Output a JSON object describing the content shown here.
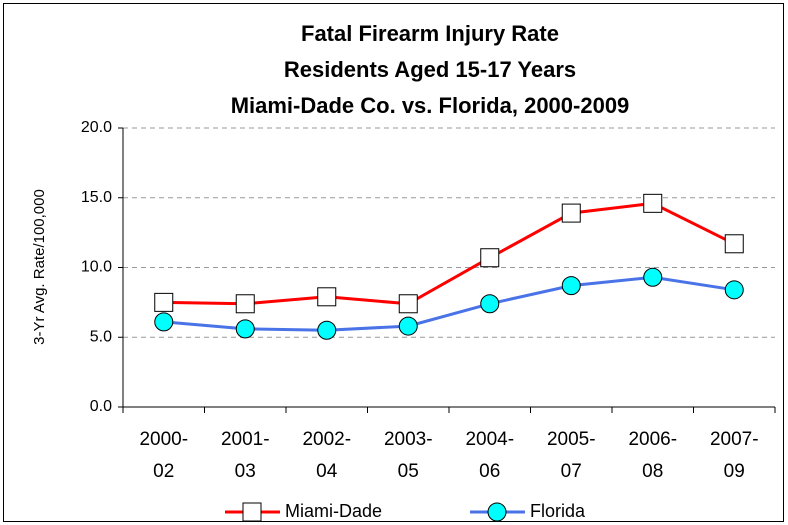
{
  "chart_data": {
    "type": "line",
    "title": [
      "Fatal Firearm Injury Rate",
      "Residents Aged 15-17 Years",
      "Miami-Dade Co. vs. Florida, 2000-2009"
    ],
    "y_label": "3-Yr Avg. Rate/100,000",
    "categories": [
      "2000-02",
      "2001-03",
      "2002-04",
      "2003-05",
      "2004-06",
      "2005-07",
      "2006-08",
      "2007-09"
    ],
    "series": [
      {
        "name": "Miami-Dade",
        "color": "#ff0000",
        "marker": "square",
        "marker_color": "#ffffff",
        "values": [
          7.5,
          7.4,
          7.9,
          7.4,
          10.7,
          13.9,
          14.6,
          11.7
        ]
      },
      {
        "name": "Florida",
        "color": "#4a73e8",
        "marker": "circle",
        "marker_color": "#00ffff",
        "values": [
          6.1,
          5.6,
          5.5,
          5.8,
          7.4,
          8.7,
          9.3,
          8.4
        ]
      }
    ],
    "ylim": [
      0,
      20
    ],
    "yticks": [
      {
        "value": 0,
        "label": "0.0"
      },
      {
        "value": 5,
        "label": "5.0"
      },
      {
        "value": 10,
        "label": "10.0"
      },
      {
        "value": 15,
        "label": "15.0"
      },
      {
        "value": 20,
        "label": "20.0"
      }
    ],
    "grid": true,
    "legend": "bottom"
  }
}
